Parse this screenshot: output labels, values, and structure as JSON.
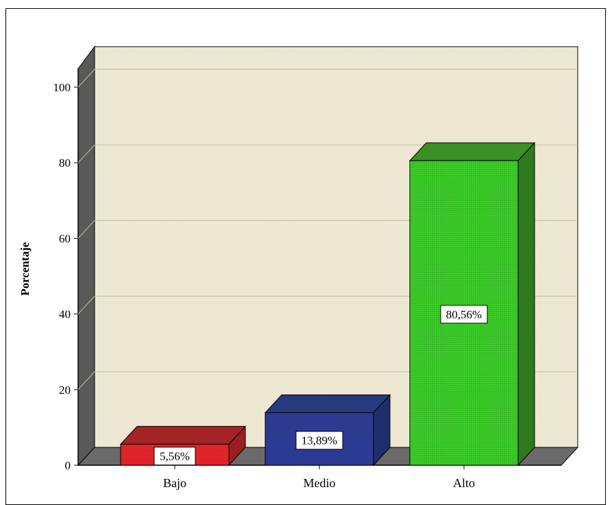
{
  "chart_data": {
    "type": "bar",
    "categories": [
      "Bajo",
      "Medio",
      "Alto"
    ],
    "values": [
      5.56,
      13.89,
      80.56
    ],
    "data_labels": [
      "5,56%",
      "13,89%",
      "80,56%"
    ],
    "ylabel": "Porcentaje",
    "xlabel": "",
    "ylim": [
      0,
      100
    ],
    "yticks": [
      "0",
      "20",
      "40",
      "60",
      "80",
      "100"
    ],
    "grid": true,
    "three_d": true,
    "bar_colors": [
      "#e8262c",
      "#2e3d9a",
      "#3ccf2a"
    ],
    "bar_top_colors": [
      "#a32427",
      "#263a7c",
      "#3a8f25"
    ],
    "bar_side_colors": [
      "#9a1f22",
      "#1f2f6e",
      "#2f7a1f"
    ],
    "plot_background": "#ede6d0"
  }
}
